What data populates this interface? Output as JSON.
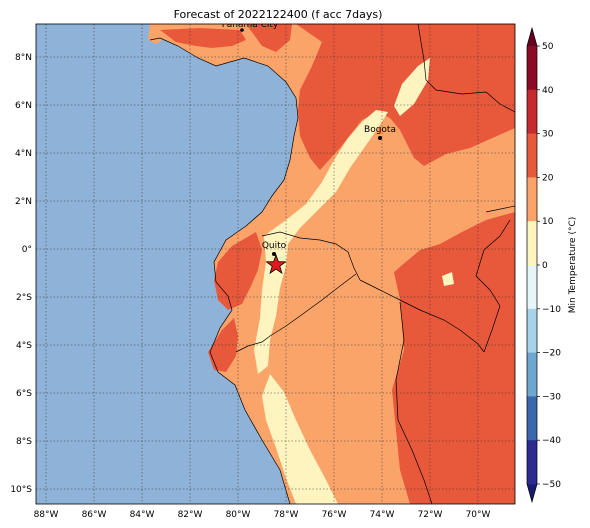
{
  "title": "Forecast of 2022122400 (f acc 7days)",
  "colorbar": {
    "label": "Min Temperature (°C)",
    "ticks": [
      "50",
      "40",
      "30",
      "20",
      "10",
      "0",
      "−10",
      "−20",
      "−30",
      "−40",
      "−50"
    ],
    "colors": [
      "#8b0a26",
      "#c62a2f",
      "#e8583a",
      "#fba46a",
      "#fef4c0",
      "#e6f5fa",
      "#a6d3e7",
      "#6ea6cf",
      "#3b67ad",
      "#2b2c8e"
    ],
    "extend_colors": {
      "top": "#650021",
      "bottom": "#1a1a70"
    }
  },
  "axes": {
    "lon_ticks": [
      "88°W",
      "86°W",
      "84°W",
      "82°W",
      "80°W",
      "78°W",
      "76°W",
      "74°W",
      "72°W",
      "70°W"
    ],
    "lat_ticks": [
      "8°N",
      "6°N",
      "4°N",
      "2°N",
      "0°",
      "2°S",
      "4°S",
      "6°S",
      "8°S",
      "10°S"
    ]
  },
  "cities": [
    {
      "name": "Panama City"
    },
    {
      "name": "Bogota"
    },
    {
      "name": "Quito"
    }
  ],
  "colors": {
    "ocean": "#8fb3d8",
    "band_15_20": "#fba46a",
    "band_20_30": "#e8583a",
    "band_10_15": "#fef4c0",
    "star": "#e31a1c"
  }
}
